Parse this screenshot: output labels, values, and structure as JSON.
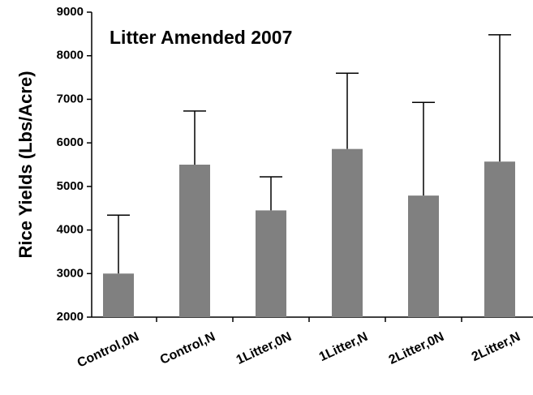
{
  "chart_data": {
    "type": "bar",
    "title": "Litter Amended 2007",
    "y_label": "Rice Yields (Lbs/Acre)",
    "categories": [
      "Control,0N",
      "Control,N",
      "1Litter,0N",
      "1Litter,N",
      "2Litter,0N",
      "2Litter,N"
    ],
    "values": [
      3000,
      5500,
      4450,
      5860,
      4790,
      5570
    ],
    "errors": [
      1340,
      1230,
      770,
      1740,
      2140,
      2910
    ],
    "color": "#808080",
    "ylim": [
      2000,
      9000
    ],
    "yticks": [
      2000,
      3000,
      4000,
      5000,
      6000,
      7000,
      8000,
      9000
    ],
    "grid": false
  }
}
